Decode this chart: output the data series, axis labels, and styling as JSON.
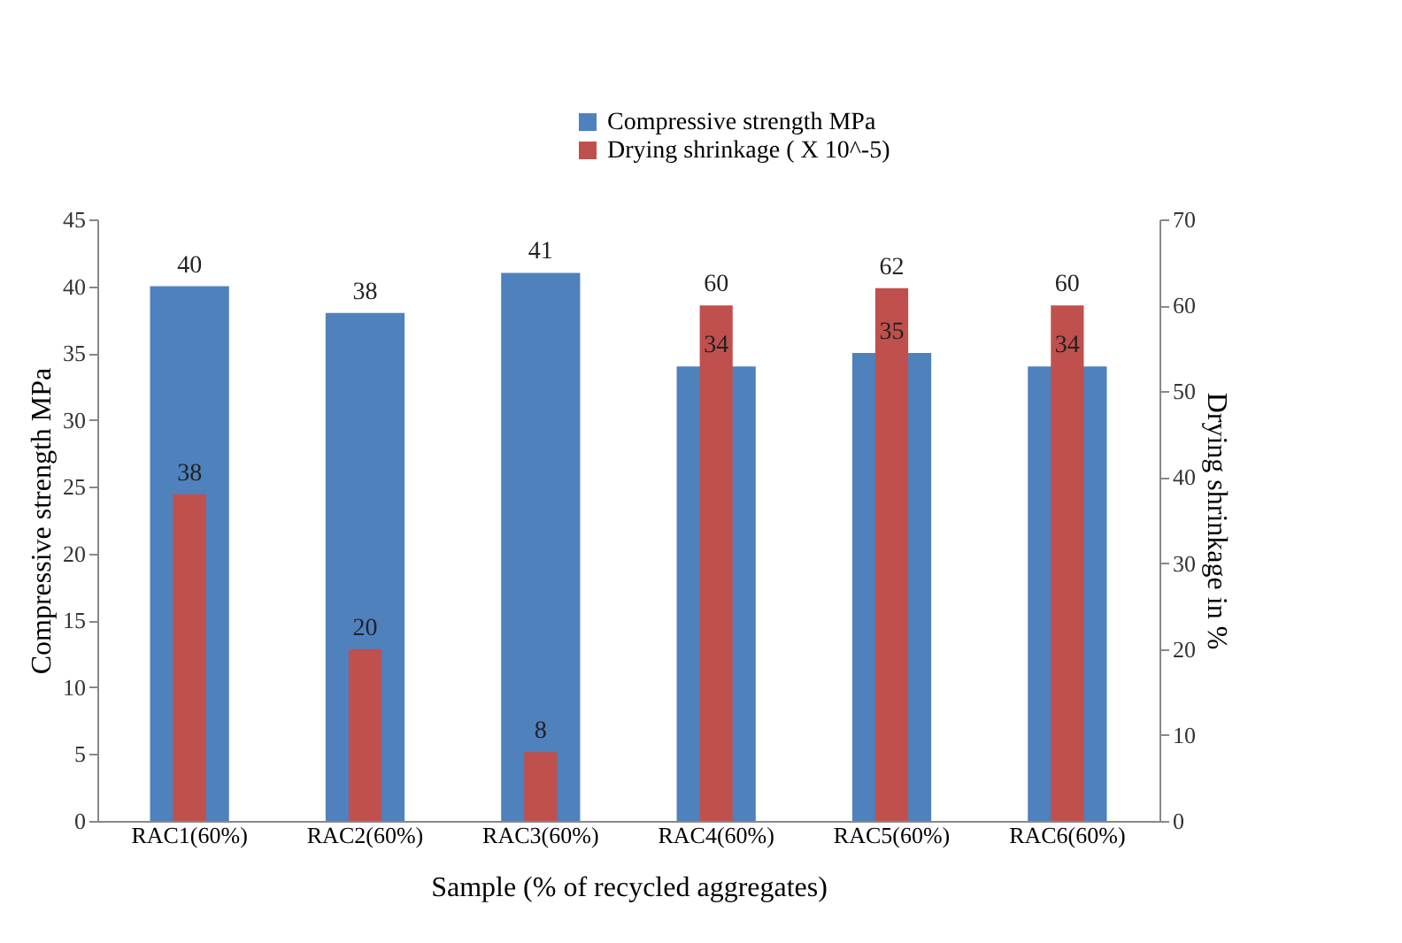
{
  "chart_data": {
    "type": "bar",
    "xlabel": "Sample (% of recycled aggregates)",
    "ylabel": "Compressive strength MPa",
    "y2label": "Drying shrinkage in %",
    "categories": [
      "RAC1(60%)",
      "RAC2(60%)",
      "RAC3(60%)",
      "RAC4(60%)",
      "RAC5(60%)",
      "RAC6(60%)"
    ],
    "series": [
      {
        "name": "Compressive strength MPa",
        "color": "#4f81bd",
        "values": [
          40,
          38,
          41,
          34,
          35,
          34
        ]
      },
      {
        "name": "Drying shrinkage ( X 10^-5)",
        "color": "#c0504d",
        "values": [
          38,
          20,
          8,
          60,
          62,
          60
        ],
        "axis": "y2"
      }
    ],
    "ylim": [
      0,
      45
    ],
    "yticks": [
      0,
      5,
      10,
      15,
      20,
      25,
      30,
      35,
      40,
      45
    ],
    "y2lim": [
      0,
      70
    ],
    "y2ticks": [
      0,
      10,
      20,
      30,
      40,
      50,
      60,
      70
    ],
    "data_labels": true,
    "legend": "top right",
    "grid": false
  }
}
